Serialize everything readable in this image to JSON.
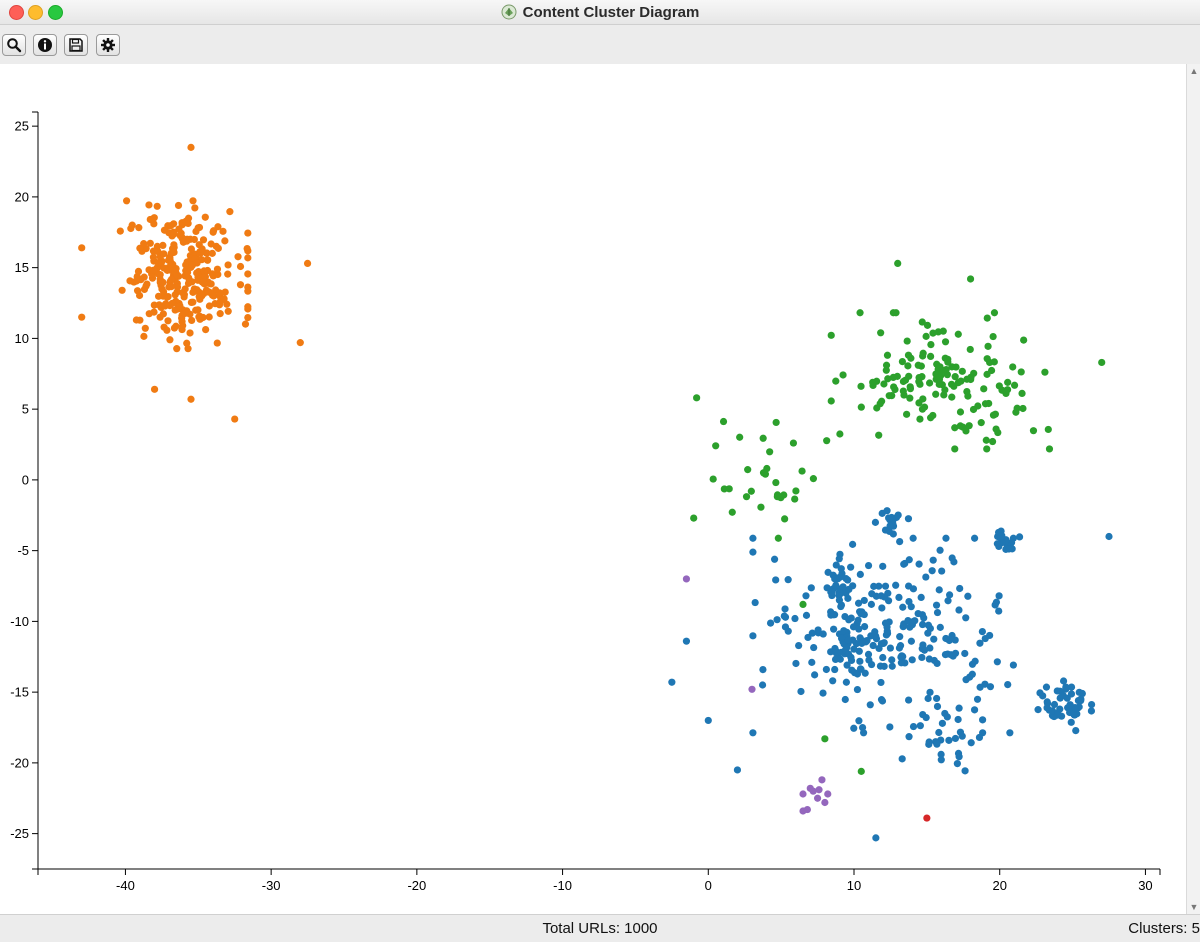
{
  "window": {
    "title": "Content Cluster Diagram"
  },
  "toolbar": {
    "buttons": [
      {
        "name": "search-button",
        "icon": "search-icon"
      },
      {
        "name": "info-button",
        "icon": "info-icon"
      },
      {
        "name": "save-button",
        "icon": "save-icon"
      },
      {
        "name": "settings-button",
        "icon": "gear-icon"
      }
    ]
  },
  "status": {
    "total_urls": "Total URLs: 1000",
    "clusters": "Clusters: 5"
  },
  "chart_data": {
    "type": "scatter",
    "xlim": [
      -46,
      31
    ],
    "ylim": [
      -27.5,
      26
    ],
    "x_ticks": [
      -40,
      -30,
      -20,
      -10,
      0,
      10,
      20,
      30
    ],
    "y_ticks": [
      -25,
      -20,
      -15,
      -10,
      -5,
      0,
      5,
      10,
      15,
      20,
      25
    ],
    "grid": false,
    "legend": "none",
    "series": [
      {
        "color": "#f07b13",
        "clusters": [
          {
            "center": [
              -36,
              14.5
            ],
            "spread": [
              3.2,
              3.8
            ],
            "count": 290
          }
        ],
        "points": [
          [
            -35.5,
            23.5
          ],
          [
            -32.5,
            4.3
          ],
          [
            -35.5,
            5.7
          ],
          [
            -38,
            6.4
          ],
          [
            -27.5,
            15.3
          ],
          [
            -43,
            16.4
          ],
          [
            -43,
            11.5
          ],
          [
            -28,
            9.7
          ]
        ]
      },
      {
        "color": "#1f77b4",
        "clusters": [
          {
            "center": [
              12,
              -11
            ],
            "spread": [
              6.5,
              5
            ],
            "count": 250
          },
          {
            "center": [
              24.5,
              -16
            ],
            "spread": [
              1.6,
              1.3
            ],
            "count": 45
          },
          {
            "center": [
              9,
              -7.2
            ],
            "spread": [
              0.8,
              1.0
            ],
            "count": 22
          },
          {
            "center": [
              9.5,
              -11.8
            ],
            "spread": [
              0.8,
              0.9
            ],
            "count": 22
          },
          {
            "center": [
              12.5,
              -3
            ],
            "spread": [
              0.9,
              0.6
            ],
            "count": 18
          },
          {
            "center": [
              20.5,
              -4.5
            ],
            "spread": [
              0.8,
              0.8
            ],
            "count": 16
          },
          {
            "center": [
              16,
              -18.5
            ],
            "spread": [
              2.5,
              1.5
            ],
            "count": 25
          }
        ],
        "points": [
          [
            -2.5,
            -14.3
          ],
          [
            11.5,
            -25.3
          ],
          [
            27.5,
            -4
          ],
          [
            0,
            -17
          ],
          [
            2,
            -20.5
          ],
          [
            -1.5,
            -11.4
          ]
        ]
      },
      {
        "color": "#2ca02c",
        "clusters": [
          {
            "center": [
              16,
              7
            ],
            "spread": [
              5.5,
              3.5
            ],
            "count": 150
          },
          {
            "center": [
              4,
              0
            ],
            "spread": [
              3,
              3
            ],
            "count": 30
          }
        ],
        "points": [
          [
            13,
            15.3
          ],
          [
            18,
            14.2
          ],
          [
            27,
            8.3
          ],
          [
            10.5,
            -20.6
          ],
          [
            8,
            -18.3
          ],
          [
            6.5,
            -8.8
          ],
          [
            -1,
            -2.7
          ],
          [
            -0.8,
            5.8
          ]
        ]
      },
      {
        "color": "#9467bd",
        "clusters": [],
        "points": [
          [
            -1.5,
            -7
          ],
          [
            3,
            -14.8
          ],
          [
            6.5,
            -22.2
          ],
          [
            7,
            -21.8
          ],
          [
            7.5,
            -22.5
          ],
          [
            8,
            -22.8
          ],
          [
            7.8,
            -21.2
          ],
          [
            6.8,
            -23.3
          ],
          [
            7.2,
            -22
          ],
          [
            8.2,
            -22.2
          ],
          [
            6.5,
            -23.4
          ],
          [
            7.6,
            -21.9
          ]
        ]
      },
      {
        "color": "#d62728",
        "clusters": [],
        "points": [
          [
            15,
            -23.9
          ]
        ]
      }
    ]
  }
}
